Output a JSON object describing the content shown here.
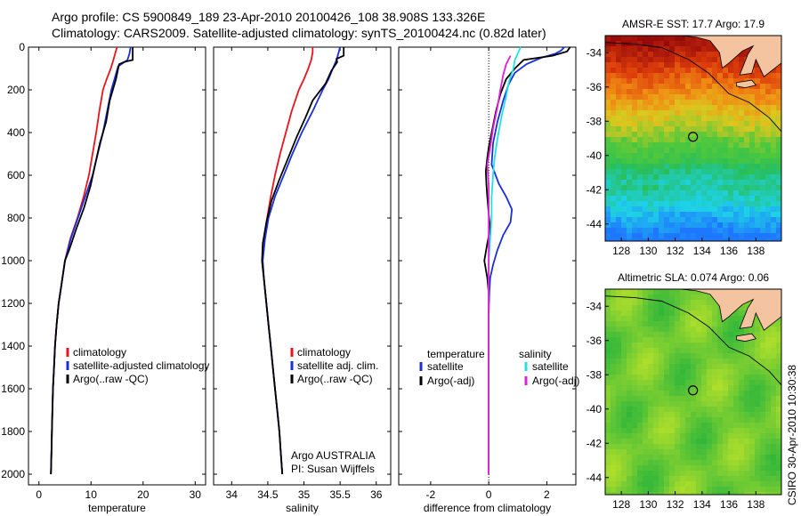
{
  "figure": {
    "title_line1": "Argo profile: CS 5900849_189 23-Apr-2010 20100426_108 38.908S 133.326E",
    "title_line2": "Climatology: CARS2009. Satellite-adjusted climatology: synTS_20100424.nc (0.82d later)",
    "side_label": "CSIRO 30-Apr-2010 10:30:38",
    "note_line1": "Argo AUSTRALIA",
    "note_line2": "PI: Susan Wijffels"
  },
  "colors": {
    "climatology": "#e8141c",
    "satellite": "#1a2fd9",
    "argo": "#000000",
    "sal_satellite": "#22e0e8",
    "sal_argo": "#e020d8"
  },
  "chart_data": [
    {
      "type": "line",
      "xlabel": "temperature",
      "xlim": [
        -2,
        32
      ],
      "ylim": [
        2050,
        0
      ],
      "xticks": [
        "0",
        "10",
        "20",
        "30"
      ],
      "yticks": [
        "0",
        "200",
        "400",
        "600",
        "800",
        "1000",
        "1200",
        "1400",
        "1600",
        "1800",
        "2000"
      ],
      "legend": [
        "climatology",
        "satellite-adjusted climatology",
        "Argo(..raw -QC)"
      ],
      "series": [
        {
          "name": "climatology",
          "color": "#e8141c",
          "points": [
            [
              15,
              0
            ],
            [
              14.7,
              25
            ],
            [
              14.3,
              60
            ],
            [
              13.8,
              100
            ],
            [
              13.0,
              150
            ],
            [
              12.3,
              200
            ],
            [
              11.6,
              300
            ],
            [
              11.0,
              400
            ],
            [
              10.3,
              500
            ],
            [
              9.6,
              600
            ],
            [
              8.6,
              700
            ],
            [
              7.4,
              800
            ],
            [
              6.0,
              900
            ],
            [
              5.0,
              1000
            ],
            [
              4.4,
              1100
            ],
            [
              3.8,
              1200
            ],
            [
              3.4,
              1300
            ],
            [
              3.1,
              1400
            ],
            [
              2.9,
              1500
            ],
            [
              2.7,
              1600
            ],
            [
              2.6,
              1700
            ],
            [
              2.5,
              1800
            ],
            [
              2.4,
              1900
            ],
            [
              2.3,
              2000
            ]
          ]
        },
        {
          "name": "satellite-adjusted climatology",
          "color": "#1a2fd9",
          "points": [
            [
              17.6,
              0
            ],
            [
              17.4,
              30
            ],
            [
              17.0,
              60
            ],
            [
              15.2,
              90
            ],
            [
              14.5,
              150
            ],
            [
              13.9,
              200
            ],
            [
              13.1,
              300
            ],
            [
              12.3,
              400
            ],
            [
              11.3,
              500
            ],
            [
              10.3,
              600
            ],
            [
              8.9,
              700
            ],
            [
              7.5,
              800
            ],
            [
              6.1,
              900
            ],
            [
              5.0,
              1000
            ],
            [
              4.4,
              1100
            ],
            [
              3.8,
              1200
            ],
            [
              3.4,
              1300
            ],
            [
              3.1,
              1400
            ],
            [
              2.9,
              1500
            ],
            [
              2.7,
              1600
            ],
            [
              2.6,
              1700
            ],
            [
              2.5,
              1800
            ],
            [
              2.4,
              1900
            ],
            [
              2.3,
              2000
            ]
          ]
        },
        {
          "name": "Argo(..raw -QC)",
          "color": "#000000",
          "points": [
            [
              18.0,
              0
            ],
            [
              18.0,
              60
            ],
            [
              16.3,
              70
            ],
            [
              15.4,
              80
            ],
            [
              14.8,
              150
            ],
            [
              13.6,
              250
            ],
            [
              12.9,
              350
            ],
            [
              11.7,
              450
            ],
            [
              10.8,
              550
            ],
            [
              9.9,
              650
            ],
            [
              8.7,
              750
            ],
            [
              7.2,
              850
            ],
            [
              5.8,
              950
            ],
            [
              5.0,
              1000
            ],
            [
              4.4,
              1100
            ],
            [
              3.8,
              1200
            ],
            [
              3.4,
              1300
            ],
            [
              3.1,
              1400
            ],
            [
              2.9,
              1500
            ],
            [
              2.7,
              1600
            ],
            [
              2.6,
              1700
            ],
            [
              2.5,
              1800
            ],
            [
              2.4,
              1900
            ],
            [
              2.3,
              2000
            ]
          ]
        }
      ]
    },
    {
      "type": "line",
      "xlabel": "salinity",
      "xlim": [
        33.75,
        36.2
      ],
      "ylim": [
        2050,
        0
      ],
      "xticks": [
        "34",
        "34.5",
        "35",
        "35.5",
        "36"
      ],
      "legend": [
        "climatology",
        "satellite adj. clim.",
        "Argo(..raw -QC)"
      ],
      "series": [
        {
          "name": "climatology",
          "color": "#e8141c",
          "points": [
            [
              35.12,
              0
            ],
            [
              35.12,
              25
            ],
            [
              35.1,
              60
            ],
            [
              35.06,
              100
            ],
            [
              35.0,
              150
            ],
            [
              34.93,
              200
            ],
            [
              34.83,
              300
            ],
            [
              34.75,
              400
            ],
            [
              34.67,
              500
            ],
            [
              34.6,
              600
            ],
            [
              34.54,
              700
            ],
            [
              34.49,
              800
            ],
            [
              34.45,
              900
            ],
            [
              34.42,
              1000
            ],
            [
              34.45,
              1100
            ],
            [
              34.48,
              1200
            ],
            [
              34.51,
              1300
            ],
            [
              34.54,
              1400
            ],
            [
              34.57,
              1500
            ],
            [
              34.6,
              1600
            ],
            [
              34.63,
              1700
            ],
            [
              34.66,
              1800
            ],
            [
              34.68,
              1900
            ],
            [
              34.7,
              2000
            ]
          ]
        },
        {
          "name": "satellite adj. clim.",
          "color": "#1a2fd9",
          "points": [
            [
              35.5,
              0
            ],
            [
              35.48,
              25
            ],
            [
              35.45,
              60
            ],
            [
              35.4,
              100
            ],
            [
              35.34,
              150
            ],
            [
              35.26,
              200
            ],
            [
              35.12,
              300
            ],
            [
              34.97,
              400
            ],
            [
              34.84,
              500
            ],
            [
              34.72,
              600
            ],
            [
              34.6,
              700
            ],
            [
              34.51,
              800
            ],
            [
              34.46,
              900
            ],
            [
              34.43,
              1000
            ],
            [
              34.45,
              1100
            ],
            [
              34.48,
              1200
            ],
            [
              34.51,
              1300
            ],
            [
              34.54,
              1400
            ],
            [
              34.57,
              1500
            ],
            [
              34.6,
              1600
            ],
            [
              34.63,
              1700
            ],
            [
              34.66,
              1800
            ],
            [
              34.68,
              1900
            ],
            [
              34.7,
              2000
            ]
          ]
        },
        {
          "name": "Argo(..raw -QC)",
          "color": "#000000",
          "points": [
            [
              35.55,
              0
            ],
            [
              35.55,
              40
            ],
            [
              35.45,
              55
            ],
            [
              35.46,
              70
            ],
            [
              35.38,
              110
            ],
            [
              35.3,
              170
            ],
            [
              35.12,
              250
            ],
            [
              35.02,
              330
            ],
            [
              34.9,
              420
            ],
            [
              34.78,
              520
            ],
            [
              34.66,
              620
            ],
            [
              34.55,
              720
            ],
            [
              34.48,
              820
            ],
            [
              34.43,
              920
            ],
            [
              34.42,
              1000
            ],
            [
              34.45,
              1100
            ],
            [
              34.48,
              1200
            ],
            [
              34.51,
              1300
            ],
            [
              34.54,
              1400
            ],
            [
              34.57,
              1500
            ],
            [
              34.6,
              1600
            ],
            [
              34.63,
              1700
            ],
            [
              34.66,
              1800
            ],
            [
              34.68,
              1900
            ],
            [
              34.7,
              2000
            ]
          ]
        }
      ]
    },
    {
      "type": "line",
      "xlabel": "difference from climatology",
      "xlim": [
        -3.1,
        3.0
      ],
      "ylim": [
        2050,
        0
      ],
      "xticks": [
        "-2",
        "0",
        "2"
      ],
      "legend_headers": [
        "temperature",
        "salinity"
      ],
      "legend": [
        "satellite",
        "Argo(-adj)",
        "satellite",
        "Argo(-adj)"
      ],
      "series": [
        {
          "name": "satellite",
          "color": "#1a2fd9",
          "points": [
            [
              2.6,
              0
            ],
            [
              2.5,
              15
            ],
            [
              2.3,
              30
            ],
            [
              1.8,
              50
            ],
            [
              1.3,
              80
            ],
            [
              0.9,
              120
            ],
            [
              0.7,
              170
            ],
            [
              0.5,
              250
            ],
            [
              0.3,
              350
            ],
            [
              0.15,
              450
            ],
            [
              0.1,
              550
            ],
            [
              0.35,
              640
            ],
            [
              0.6,
              700
            ],
            [
              0.8,
              760
            ],
            [
              0.75,
              820
            ],
            [
              0.5,
              880
            ],
            [
              0.3,
              950
            ],
            [
              0.15,
              1020
            ],
            [
              0.05,
              1080
            ],
            [
              0.02,
              1150
            ],
            [
              0.0,
              1250
            ],
            [
              0.0,
              2000
            ]
          ]
        },
        {
          "name": "Argo(-adj)",
          "color": "#000000",
          "points": [
            [
              2.8,
              0
            ],
            [
              2.7,
              20
            ],
            [
              2.2,
              40
            ],
            [
              1.2,
              60
            ],
            [
              0.9,
              100
            ],
            [
              0.6,
              150
            ],
            [
              0.4,
              220
            ],
            [
              0.25,
              300
            ],
            [
              0.1,
              400
            ],
            [
              0.0,
              470
            ],
            [
              -0.05,
              520
            ],
            [
              -0.1,
              580
            ],
            [
              -0.08,
              640
            ],
            [
              -0.05,
              700
            ],
            [
              0.0,
              780
            ],
            [
              0.05,
              850
            ],
            [
              -0.05,
              920
            ],
            [
              -0.15,
              1000
            ],
            [
              -0.05,
              1080
            ],
            [
              0.0,
              1150
            ],
            [
              0.0,
              2000
            ]
          ]
        },
        {
          "name": "satellite",
          "color": "#22e0e8",
          "points": [
            [
              1.1,
              0
            ],
            [
              1.0,
              30
            ],
            [
              0.9,
              60
            ],
            [
              0.85,
              100
            ],
            [
              0.7,
              160
            ],
            [
              0.6,
              230
            ],
            [
              0.45,
              320
            ],
            [
              0.3,
              430
            ],
            [
              0.2,
              520
            ],
            [
              0.15,
              600
            ],
            [
              0.1,
              700
            ],
            [
              0.1,
              800
            ],
            [
              0.05,
              900
            ],
            [
              0.0,
              1000
            ],
            [
              0.0,
              2000
            ]
          ]
        },
        {
          "name": "Argo(-adj)",
          "color": "#e020d8",
          "points": [
            [
              0.75,
              40
            ],
            [
              0.6,
              80
            ],
            [
              0.5,
              130
            ],
            [
              0.4,
              200
            ],
            [
              0.3,
              280
            ],
            [
              0.15,
              380
            ],
            [
              0.05,
              470
            ],
            [
              -0.05,
              550
            ],
            [
              0.0,
              650
            ],
            [
              0.0,
              900
            ],
            [
              0.0,
              1100
            ],
            [
              0.0,
              1500
            ],
            [
              0.0,
              2000
            ]
          ]
        }
      ]
    },
    {
      "type": "heatmap",
      "title": "AMSR-E SST: 17.7 Argo: 17.9",
      "xlim": [
        126.8,
        139.9
      ],
      "ylim": [
        -45,
        -33
      ],
      "xticks": [
        "128",
        "130",
        "132",
        "134",
        "136",
        "138"
      ],
      "yticks": [
        "-34",
        "-36",
        "-38",
        "-40",
        "-42",
        "-44"
      ],
      "marker": {
        "lon": 133.326,
        "lat": -38.908
      }
    },
    {
      "type": "heatmap",
      "title": "Altimetric SLA: 0.074 Argo: 0.06",
      "xlim": [
        126.8,
        139.9
      ],
      "ylim": [
        -45,
        -33
      ],
      "xticks": [
        "128",
        "130",
        "132",
        "134",
        "136",
        "138"
      ],
      "yticks": [
        "-34",
        "-36",
        "-38",
        "-40",
        "-42",
        "-44"
      ],
      "marker": {
        "lon": 133.326,
        "lat": -38.908
      }
    }
  ]
}
